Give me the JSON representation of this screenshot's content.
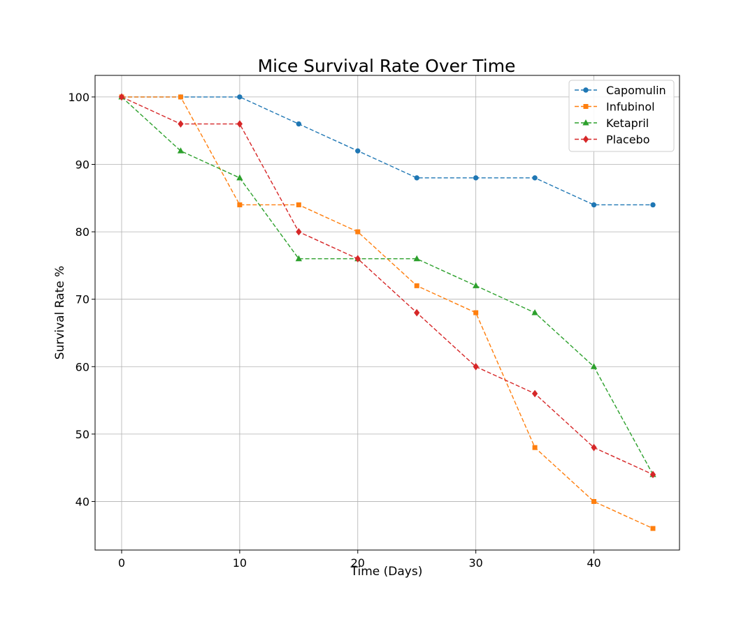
{
  "chart_data": {
    "type": "line",
    "title": "Mice Survival Rate Over Time",
    "xlabel": "Time (Days)",
    "ylabel": "Survival Rate %",
    "x": [
      0,
      5,
      10,
      15,
      20,
      25,
      30,
      35,
      40,
      45
    ],
    "xlim": [
      -2.25,
      47.25
    ],
    "ylim": [
      32.8,
      103.2
    ],
    "xticks": [
      0,
      10,
      20,
      30,
      40
    ],
    "yticks": [
      40,
      50,
      60,
      70,
      80,
      90,
      100
    ],
    "grid": true,
    "legend_position": "top-right",
    "line_style": "dashed",
    "series": [
      {
        "name": "Capomulin",
        "color": "#1f77b4",
        "marker": "circle",
        "values": [
          100,
          100,
          100,
          96,
          92,
          88,
          88,
          88,
          84,
          84
        ]
      },
      {
        "name": "Infubinol",
        "color": "#ff7f0e",
        "marker": "square",
        "values": [
          100,
          100,
          84,
          84,
          80,
          72,
          68,
          48,
          40,
          36
        ]
      },
      {
        "name": "Ketapril",
        "color": "#2ca02c",
        "marker": "triangle",
        "values": [
          100,
          92,
          88,
          76,
          76,
          76,
          72,
          68,
          60,
          44
        ]
      },
      {
        "name": "Placebo",
        "color": "#d62728",
        "marker": "diamond",
        "values": [
          100,
          96,
          96,
          80,
          76,
          68,
          60,
          56,
          48,
          44
        ]
      }
    ]
  }
}
